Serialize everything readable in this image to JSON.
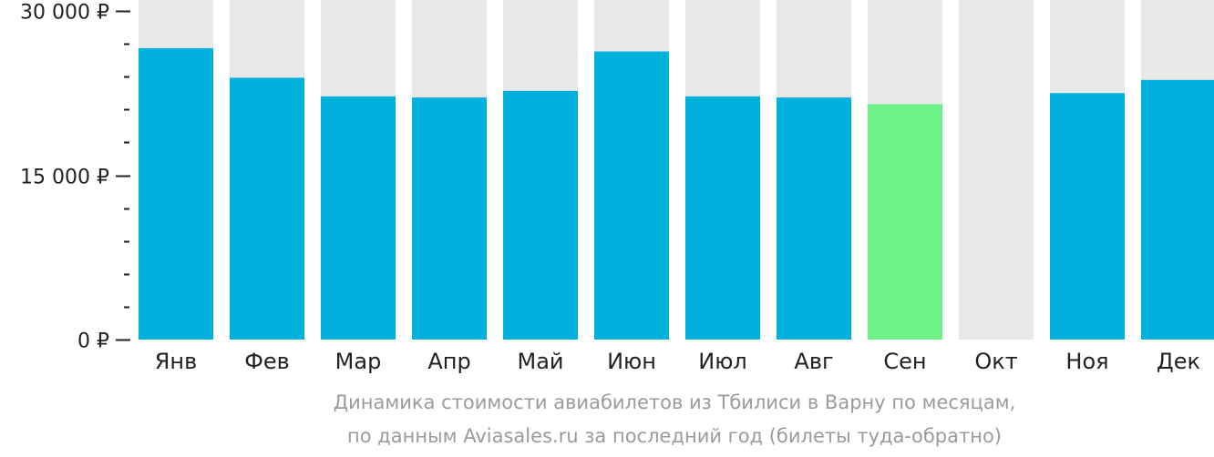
{
  "chart_data": {
    "type": "bar",
    "categories": [
      "Янв",
      "Фев",
      "Мар",
      "Апр",
      "Май",
      "Июн",
      "Июл",
      "Авг",
      "Сен",
      "Окт",
      "Ноя",
      "Дек"
    ],
    "values": [
      26600,
      23900,
      22200,
      22100,
      22700,
      26300,
      22200,
      22100,
      21500,
      null,
      22500,
      23700
    ],
    "highlight_index": 8,
    "ylim": [
      0,
      31000
    ],
    "y_ticks": [
      {
        "value": 0,
        "label": "0 ₽"
      },
      {
        "value": 15000,
        "label": "15 000 ₽"
      },
      {
        "value": 30000,
        "label": "30 000 ₽"
      }
    ],
    "minor_tick_step": 3000,
    "grid": false,
    "colors": {
      "bar": "#00b0dd",
      "highlight": "#6ef287",
      "track": "#e8e8e8",
      "axis_text": "#222222",
      "caption": "#9b9b9b"
    }
  },
  "caption": {
    "line1": "Динамика стоимости авиабилетов из Тбилиси в Варну по месяцам,",
    "line2": "по данным Aviasales.ru за последний год (билеты туда-обратно)"
  }
}
